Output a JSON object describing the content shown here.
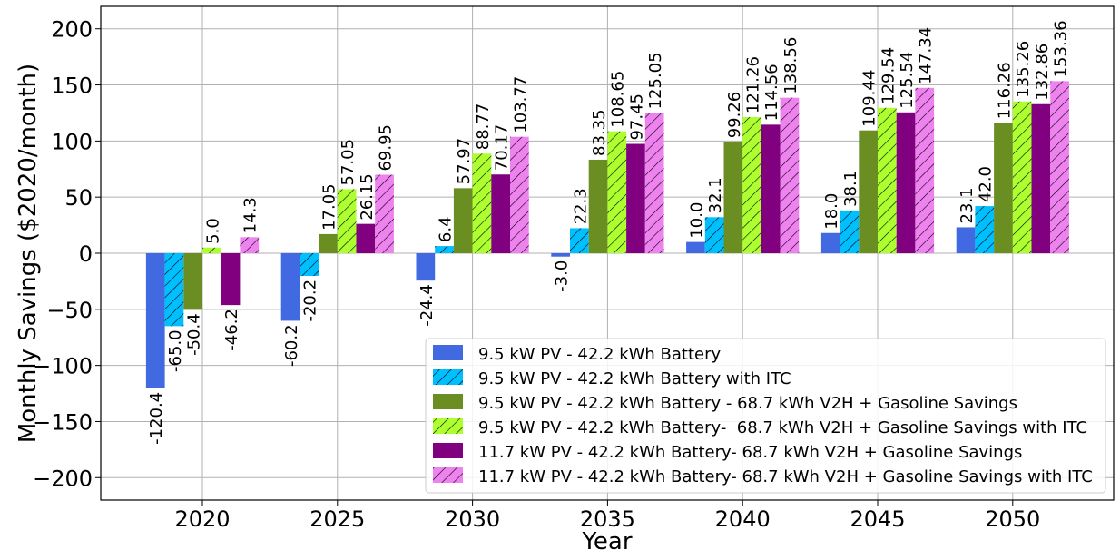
{
  "chart_data": {
    "type": "bar",
    "title": "",
    "xlabel": "Year",
    "ylabel": "Monthly Savings ($2020/month)",
    "ylim": [
      -220,
      220
    ],
    "yticks": [
      -200,
      -150,
      -100,
      -50,
      0,
      50,
      100,
      150,
      200
    ],
    "grid": true,
    "legend_position": "lower-right",
    "categories": [
      "2020",
      "2025",
      "2030",
      "2035",
      "2040",
      "2045",
      "2050"
    ],
    "series": [
      {
        "name": "9.5 kW PV - 42.2 kWh Battery",
        "color": "#4169e1",
        "hatch": false,
        "values": [
          -120.4,
          -60.2,
          -24.4,
          -3.0,
          10.0,
          18.0,
          23.1
        ],
        "labels": [
          "-120.4",
          "-60.2",
          "-24.4",
          "-3.0",
          "10.0",
          "18.0",
          "23.1"
        ]
      },
      {
        "name": "9.5 kW PV - 42.2 kWh Battery with ITC",
        "color": "#00bfff",
        "hatch": true,
        "values": [
          -65.0,
          -20.2,
          6.4,
          22.3,
          32.1,
          38.1,
          42.0
        ],
        "labels": [
          "-65.0",
          "-20.2",
          "6.4",
          "22.3",
          "32.1",
          "38.1",
          "42.0"
        ]
      },
      {
        "name": "9.5 kW PV - 42.2 kWh Battery - 68.7 kWh V2H + Gasoline Savings",
        "color": "#6b8e23",
        "hatch": false,
        "values": [
          -50.4,
          17.05,
          57.97,
          83.35,
          99.26,
          109.44,
          116.26
        ],
        "labels": [
          "-50.4",
          "17.05",
          "57.97",
          "83.35",
          "99.26",
          "109.44",
          "116.26"
        ]
      },
      {
        "name": "9.5 kW PV - 42.2 kWh Battery-  68.7 kWh V2H + Gasoline Savings with ITC",
        "color": "#adff2f",
        "hatch": true,
        "values": [
          5.0,
          57.05,
          88.77,
          108.65,
          121.26,
          129.54,
          135.26
        ],
        "labels": [
          "5.0",
          "57.05",
          "88.77",
          "108.65",
          "121.26",
          "129.54",
          "135.26"
        ]
      },
      {
        "name": "11.7 kW PV - 42.2 kWh Battery- 68.7 kWh V2H + Gasoline Savings",
        "color": "#800080",
        "hatch": false,
        "values": [
          -46.2,
          26.15,
          70.17,
          97.45,
          114.56,
          125.54,
          132.86
        ],
        "labels": [
          "-46.2",
          "26.15",
          "70.17",
          "97.45",
          "114.56",
          "125.54",
          "132.86"
        ]
      },
      {
        "name": "11.7 kW PV - 42.2 kWh Battery- 68.7 kWh V2H + Gasoline Savings with ITC",
        "color": "#ee82ee",
        "hatch": true,
        "values": [
          14.3,
          69.95,
          103.77,
          125.05,
          138.56,
          147.34,
          153.36
        ],
        "labels": [
          "14.3",
          "69.95",
          "103.77",
          "125.05",
          "138.56",
          "147.34",
          "153.36"
        ]
      }
    ]
  }
}
